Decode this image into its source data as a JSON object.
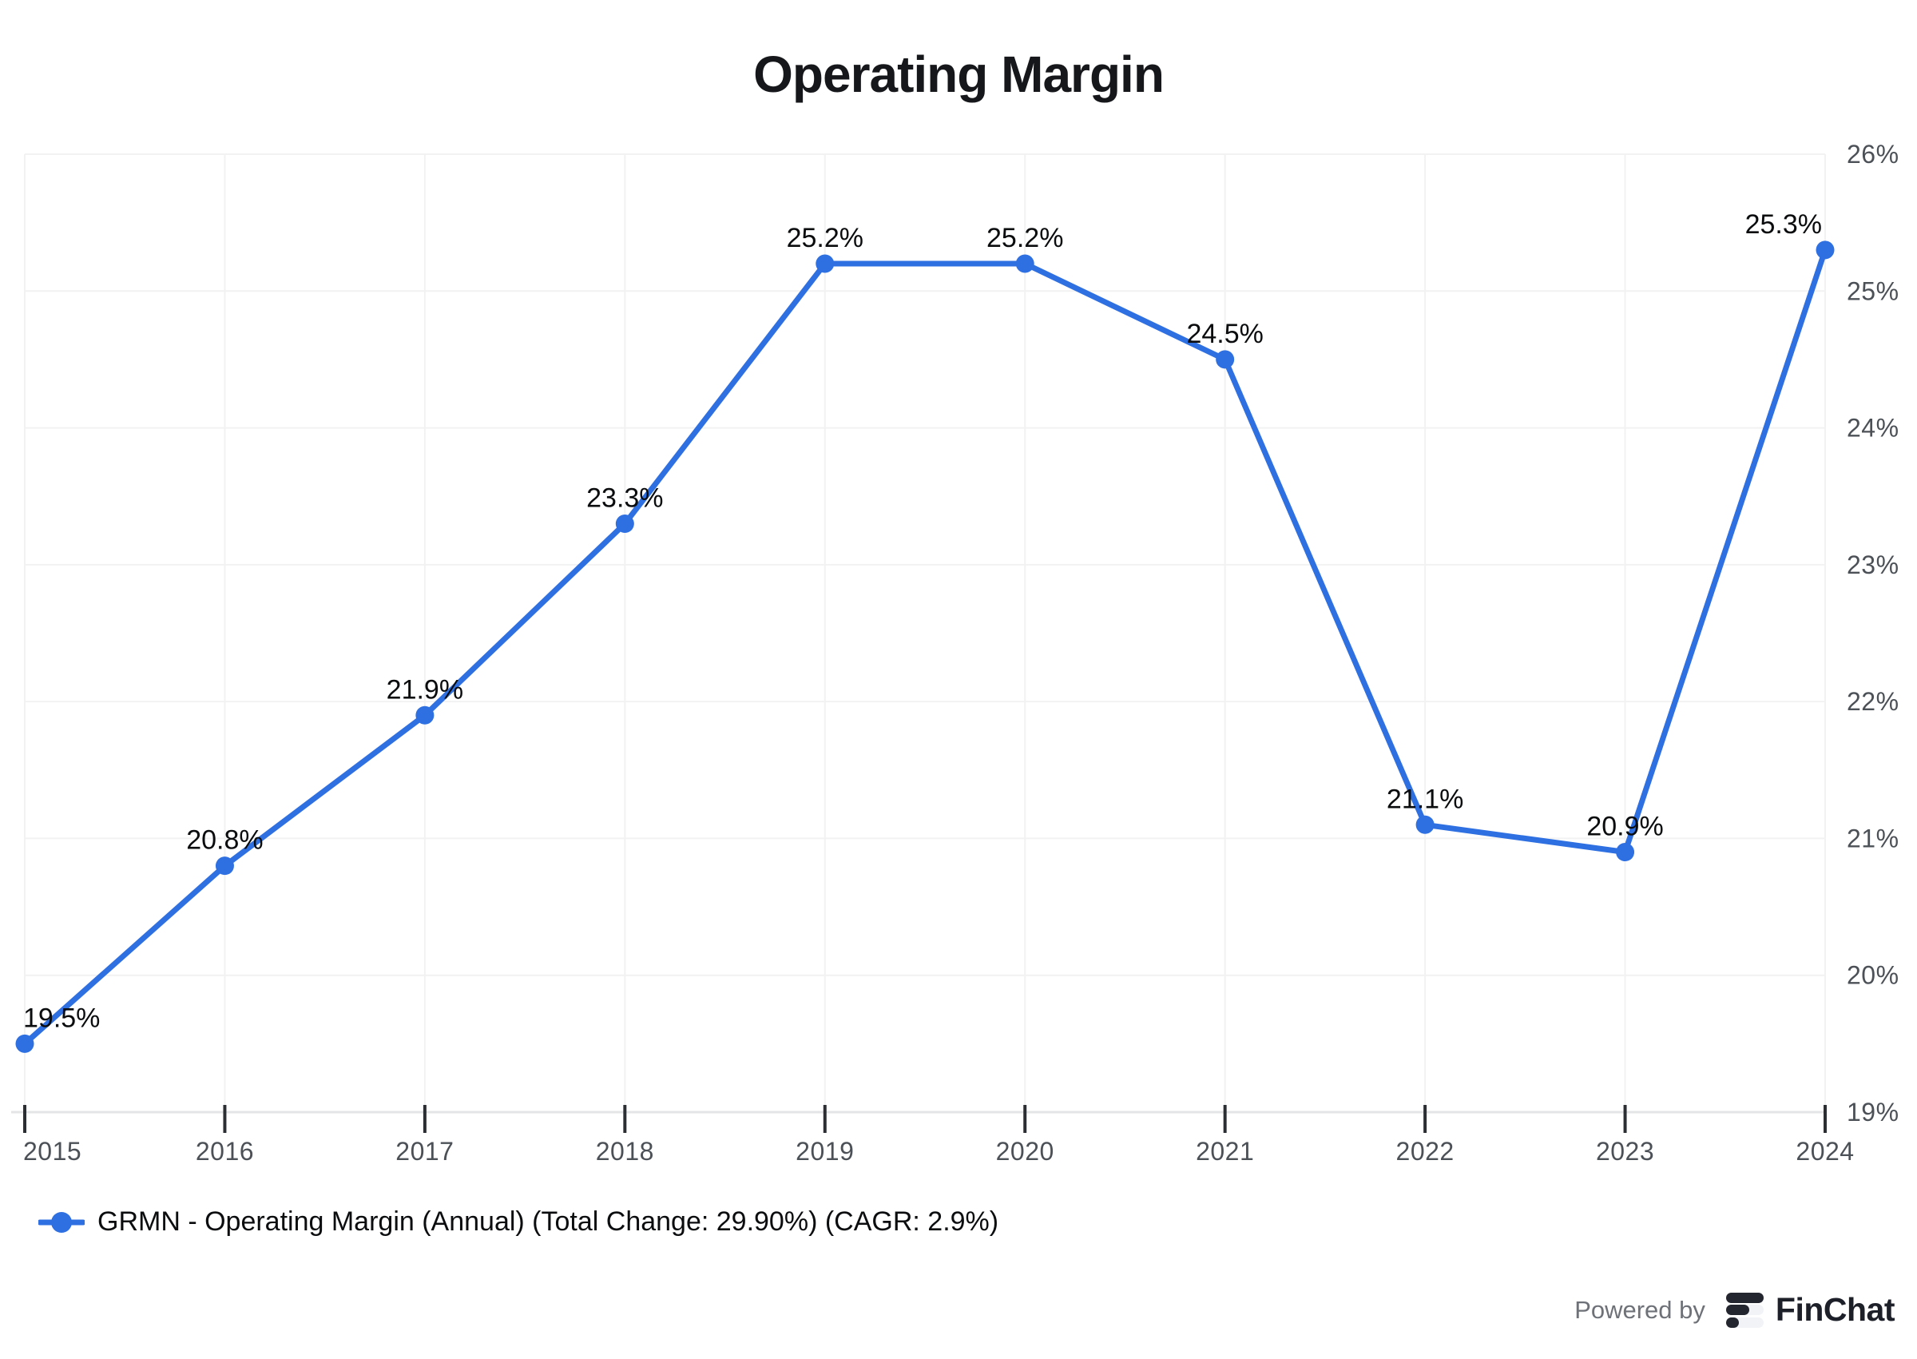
{
  "title": "Operating Margin",
  "legend": {
    "label": "GRMN - Operating Margin (Annual) (Total Change: 29.90%) (CAGR: 2.9%)"
  },
  "footer": {
    "powered_by": "Powered by",
    "brand": "FinChat"
  },
  "colors": {
    "line": "#2e6fe2",
    "grid": "#f2f2f2",
    "axis_line": "#e4e5e7",
    "tick": "#2b2e33",
    "axis_label": "#4c5157",
    "data_label": "#0a0c0e",
    "title": "#15171a"
  },
  "chart_data": {
    "type": "line",
    "title": "Operating Margin",
    "categories": [
      "2015",
      "2016",
      "2017",
      "2018",
      "2019",
      "2020",
      "2021",
      "2022",
      "2023",
      "2024"
    ],
    "series": [
      {
        "name": "GRMN - Operating Margin (Annual)",
        "values": [
          19.5,
          20.8,
          21.9,
          23.3,
          25.2,
          25.2,
          24.5,
          21.1,
          20.9,
          25.3
        ],
        "color": "#2e6fe2"
      }
    ],
    "point_labels": [
      "19.5%",
      "20.8%",
      "21.9%",
      "23.3%",
      "25.2%",
      "25.2%",
      "24.5%",
      "21.1%",
      "20.9%",
      "25.3%"
    ],
    "y_ticks": [
      {
        "value": 26,
        "label": "26%"
      },
      {
        "value": 25,
        "label": "25%"
      },
      {
        "value": 24,
        "label": "24%"
      },
      {
        "value": 23,
        "label": "23%"
      },
      {
        "value": 22,
        "label": "22%"
      },
      {
        "value": 21,
        "label": "21%"
      },
      {
        "value": 20,
        "label": "20%"
      },
      {
        "value": 19,
        "label": "19%"
      }
    ],
    "ylim": [
      19,
      26
    ],
    "xlabel": "",
    "ylabel": "",
    "grid": true,
    "y_axis_side": "right",
    "legend_position": "bottom-left",
    "total_change": "29.90%",
    "cagr": "2.9%"
  }
}
